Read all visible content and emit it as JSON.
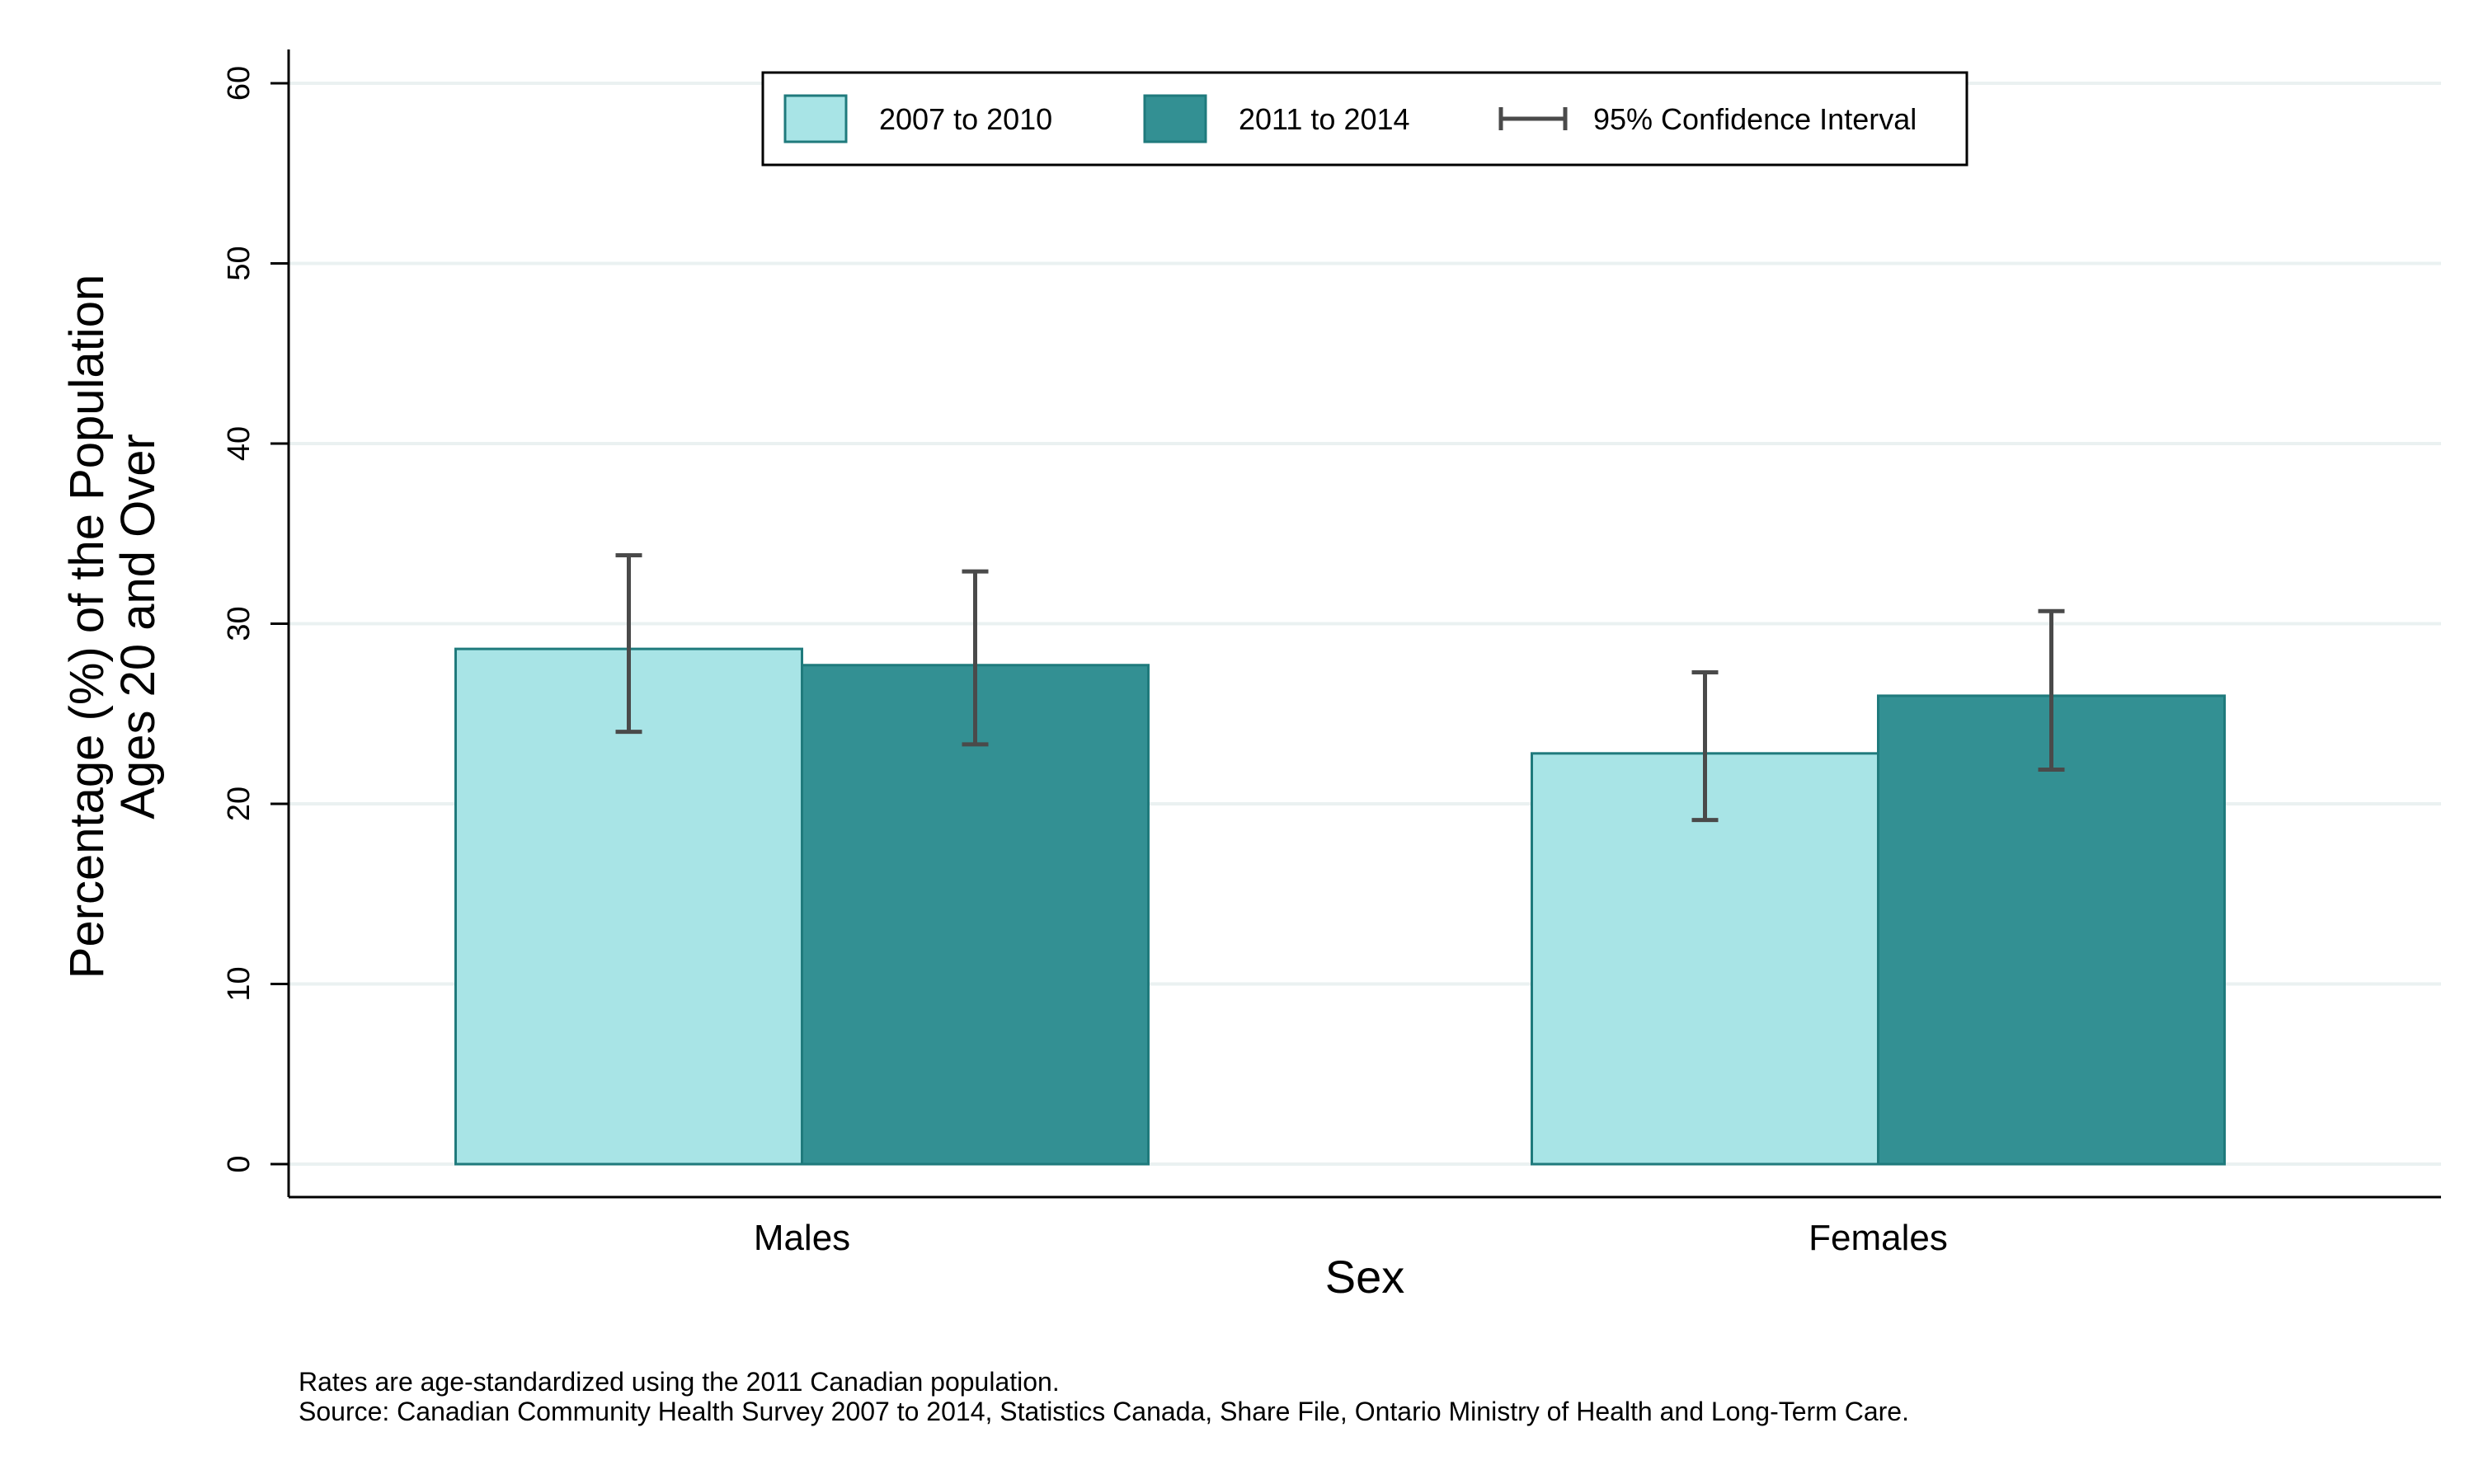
{
  "chart_data": {
    "type": "bar",
    "title": "",
    "xlabel": "Sex",
    "ylabel_line1": "Percentage (%) of the Population",
    "ylabel_line2": "Ages 20 and Over",
    "ylim": [
      0,
      60
    ],
    "yticks": [
      0,
      10,
      20,
      30,
      40,
      50,
      60
    ],
    "grid": true,
    "legend_position": "top-center",
    "categories": [
      "Males",
      "Females"
    ],
    "series": [
      {
        "name": "2007 to 2010",
        "color": "#a8e4e6",
        "values": [
          28.6,
          22.8
        ],
        "ci_low": [
          24.0,
          19.1
        ],
        "ci_high": [
          33.8,
          27.3
        ]
      },
      {
        "name": "2011 to 2014",
        "color": "#339093",
        "values": [
          27.7,
          26.0
        ],
        "ci_low": [
          23.3,
          21.9
        ],
        "ci_high": [
          32.9,
          30.7
        ]
      }
    ],
    "ci_legend_label": "95% Confidence Interval",
    "colors": {
      "bar_edge": "#1f7a7c",
      "error_bar": "#4a4a4a",
      "grid": "#eaf1f1",
      "axis": "#000000"
    }
  },
  "notes": {
    "line1": "Rates are age-standardized using the 2011 Canadian population.",
    "line2": "Source: Canadian Community Health Survey 2007 to 2014, Statistics Canada, Share File, Ontario Ministry of Health and Long-Term Care."
  }
}
